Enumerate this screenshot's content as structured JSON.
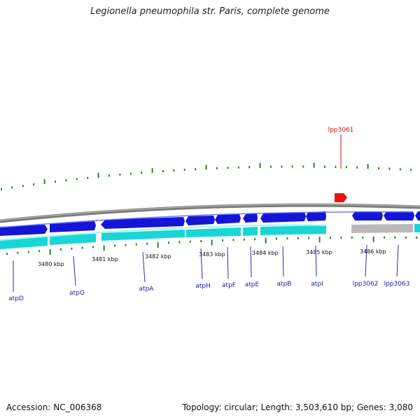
{
  "title": "Legionella pneumophila str. Paris, complete genome",
  "footer": {
    "accession": "Accession: NC_006368",
    "stats": "Topology: circular; Length: 3,503,610 bp; Genes: 3,080"
  },
  "colors": {
    "gene_forward": "#1515d8",
    "gene_forward_light": "#4a62ff",
    "cds_track": "#19d6d6",
    "cds_track_light": "#8ef5f5",
    "hypothetical": "#b9b9b9",
    "backbone": "#808080",
    "tick": "#1e8a1e",
    "label_line": "#2a2ab8",
    "feature": "#ee1111"
  },
  "scale_labels": [
    "3480 kbp",
    "3481 kbp",
    "3482 kbp",
    "3483 kbp",
    "3484 kbp",
    "3485 kbp",
    "3486 kbp"
  ],
  "genes": [
    "atpD",
    "atpG",
    "atpA",
    "atpH",
    "atpF",
    "atpE",
    "atpB",
    "atpI",
    "lpp3062",
    "lpp3063"
  ],
  "feature_label": "lpp3061"
}
